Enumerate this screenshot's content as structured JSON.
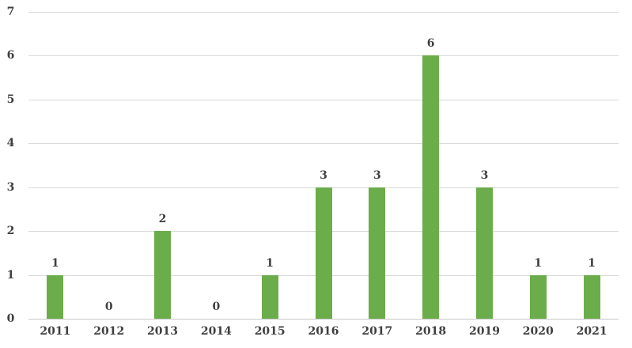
{
  "chart_data": {
    "type": "bar",
    "title": "",
    "xlabel": "",
    "ylabel": "",
    "categories": [
      "2011",
      "2012",
      "2013",
      "2014",
      "2015",
      "2016",
      "2017",
      "2018",
      "2019",
      "2020",
      "2021"
    ],
    "values": [
      1,
      0,
      2,
      0,
      1,
      3,
      3,
      6,
      3,
      1,
      1
    ],
    "data_labels": [
      "1",
      "0",
      "2",
      "0",
      "1",
      "3",
      "3",
      "6",
      "3",
      "1",
      "1"
    ],
    "ylim": [
      0,
      7
    ],
    "yticks": [
      0,
      1,
      2,
      3,
      4,
      5,
      6,
      7
    ],
    "grid": true,
    "legend": "none",
    "colors": {
      "bar": "#6cad4b",
      "label_text": "#3f3f3f",
      "gridline": "#d9d9d9",
      "axis_line": "#c8c8c8",
      "background": "#ffffff"
    }
  }
}
